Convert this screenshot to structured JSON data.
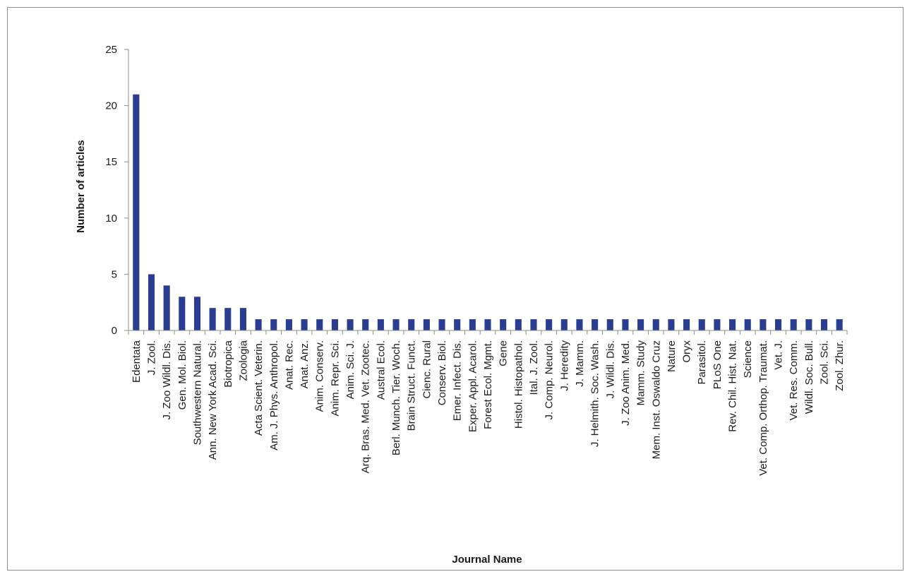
{
  "chart_data": {
    "type": "bar",
    "title": "",
    "xlabel": "Journal Name",
    "ylabel": "Number of articles",
    "ylim": [
      0,
      25
    ],
    "yticks": [
      0,
      5,
      10,
      15,
      20,
      25
    ],
    "grid": false,
    "legend": "none",
    "bar_color": "#2b3d8f",
    "categories": [
      "Edentata",
      "J. Zool.",
      "J. Zoo Wildl. Dis.",
      "Gen. Mol. Biol.",
      "Southwestern Natural.",
      "Ann. New York Acad. Sci.",
      "Biotropica",
      "Zoologia",
      "Acta Scient. Veterin.",
      "Am. J. Phys. Anthropol.",
      "Anat. Rec.",
      "Anat. Anz.",
      "Anim. Conserv.",
      "Anim. Repr. Sci.",
      "Anim. Sci. J.",
      "Arq. Bras. Med. Vet. Zootec.",
      "Austral Ecol.",
      "Berl. Munch. Tier. Woch.",
      "Brain Struct. Funct.",
      "Cienc. Rural",
      "Conserv. Biol.",
      "Emer. Infect. Dis.",
      "Exper. Appl. Acarol.",
      "Forest Ecol. Mgmt.",
      "Gene",
      "Histol. Histopathol.",
      "Ital. J. Zool.",
      "J. Comp. Neurol.",
      "J. Heredity",
      "J. Mamm.",
      "J. Helmith. Soc. Wash.",
      "J. Wildl. Dis.",
      "J. Zoo Anim. Med.",
      "Mamm. Study",
      "Mem. Inst. Oswaldo Cruz",
      "Nature",
      "Oryx",
      "Parasitol.",
      "PLoS One",
      "Rev. Chil. Hist. Nat.",
      "Science",
      "Vet. Comp. Orthop. Traumat.",
      "Vet. J.",
      "Vet. Res. Comm.",
      "Wildl. Soc. Bull.",
      "Zool. Sci.",
      "Zool. Zhur."
    ],
    "values": [
      21,
      5,
      4,
      3,
      3,
      2,
      2,
      2,
      1,
      1,
      1,
      1,
      1,
      1,
      1,
      1,
      1,
      1,
      1,
      1,
      1,
      1,
      1,
      1,
      1,
      1,
      1,
      1,
      1,
      1,
      1,
      1,
      1,
      1,
      1,
      1,
      1,
      1,
      1,
      1,
      1,
      1,
      1,
      1,
      1,
      1,
      1
    ]
  }
}
